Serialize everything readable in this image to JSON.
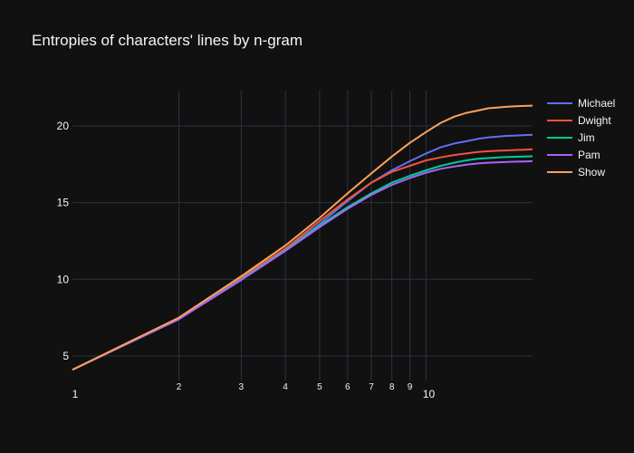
{
  "chart_data": {
    "type": "line",
    "title": "Entropies of characters' lines by n-gram",
    "xlabel": "",
    "ylabel": "",
    "x_scale": "log",
    "xlim": [
      1,
      20
    ],
    "ylim": [
      3.4,
      22.3
    ],
    "grid": true,
    "legend_position": "top-right",
    "x_ticks": [
      {
        "value": 1,
        "label": "1",
        "major": true
      },
      {
        "value": 2,
        "label": "2",
        "major": false
      },
      {
        "value": 3,
        "label": "3",
        "major": false
      },
      {
        "value": 4,
        "label": "4",
        "major": false
      },
      {
        "value": 5,
        "label": "5",
        "major": false
      },
      {
        "value": 6,
        "label": "6",
        "major": false
      },
      {
        "value": 7,
        "label": "7",
        "major": false
      },
      {
        "value": 8,
        "label": "8",
        "major": false
      },
      {
        "value": 9,
        "label": "9",
        "major": false
      },
      {
        "value": 10,
        "label": "10",
        "major": true
      }
    ],
    "y_ticks": [
      {
        "value": 5,
        "label": "5"
      },
      {
        "value": 10,
        "label": "10"
      },
      {
        "value": 15,
        "label": "15"
      },
      {
        "value": 20,
        "label": "20"
      }
    ],
    "x": [
      1,
      2,
      3,
      4,
      5,
      6,
      7,
      8,
      9,
      10,
      11,
      12,
      13,
      14,
      15,
      16,
      17,
      18,
      19,
      20
    ],
    "series": [
      {
        "name": "Michael",
        "color": "#636efa",
        "values": [
          4.1,
          7.4,
          10.0,
          11.9,
          13.6,
          15.1,
          16.3,
          17.1,
          17.7,
          18.2,
          18.6,
          18.85,
          19.0,
          19.15,
          19.25,
          19.3,
          19.35,
          19.37,
          19.4,
          19.42
        ]
      },
      {
        "name": "Dwight",
        "color": "#ef553b",
        "values": [
          4.1,
          7.4,
          10.1,
          12.0,
          13.8,
          15.2,
          16.3,
          17.0,
          17.4,
          17.75,
          17.95,
          18.1,
          18.2,
          18.3,
          18.35,
          18.38,
          18.4,
          18.43,
          18.45,
          18.47
        ]
      },
      {
        "name": "Jim",
        "color": "#00cc96",
        "values": [
          4.1,
          7.4,
          10.0,
          11.9,
          13.5,
          14.7,
          15.6,
          16.3,
          16.75,
          17.1,
          17.4,
          17.6,
          17.75,
          17.85,
          17.9,
          17.94,
          17.97,
          17.99,
          18.0,
          18.02
        ]
      },
      {
        "name": "Pam",
        "color": "#ab63fa",
        "values": [
          4.1,
          7.4,
          9.95,
          11.85,
          13.4,
          14.6,
          15.5,
          16.15,
          16.6,
          16.95,
          17.2,
          17.35,
          17.47,
          17.55,
          17.6,
          17.63,
          17.65,
          17.67,
          17.68,
          17.7
        ]
      },
      {
        "name": "Show",
        "color": "#ffa15a",
        "values": [
          4.1,
          7.5,
          10.2,
          12.2,
          14.0,
          15.6,
          16.9,
          18.0,
          18.9,
          19.6,
          20.2,
          20.6,
          20.85,
          21.0,
          21.15,
          21.2,
          21.25,
          21.28,
          21.3,
          21.32
        ]
      }
    ]
  }
}
